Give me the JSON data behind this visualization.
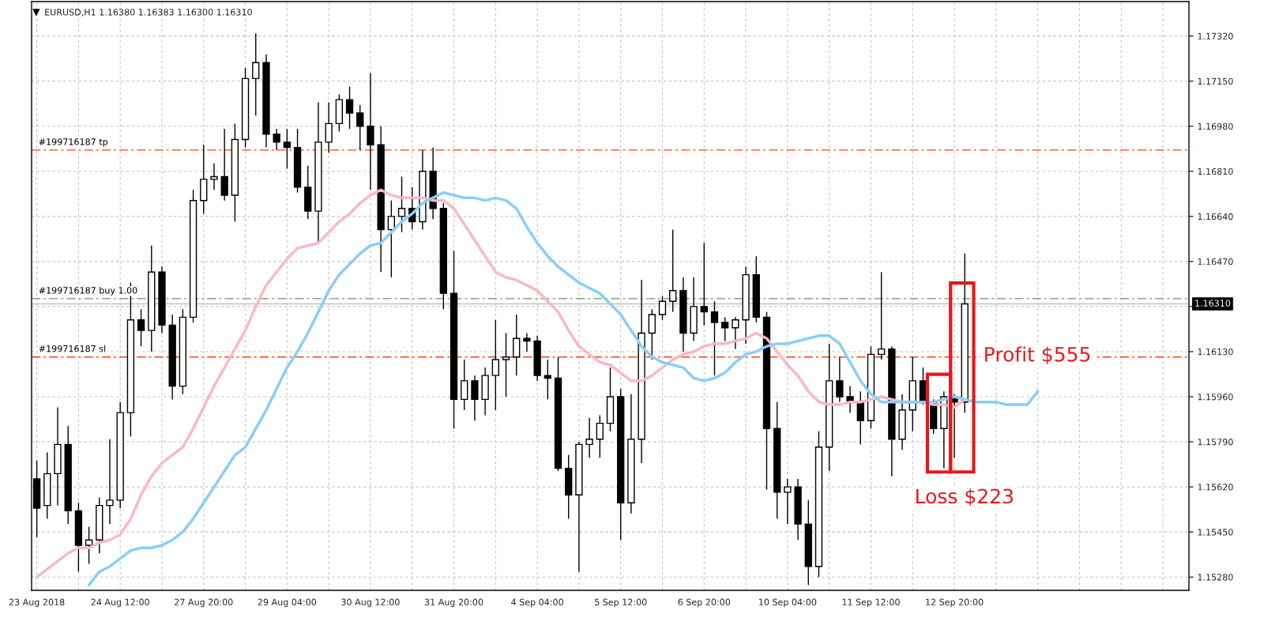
{
  "chart_data": {
    "type": "candlestick",
    "title": "EURUSD,H1 1.16380 1.16383 1.16300 1.16310",
    "categories": [
      "23 Aug 2018",
      null,
      null,
      null,
      null,
      null,
      null,
      null,
      "24 Aug 12:00",
      null,
      null,
      null,
      null,
      null,
      null,
      null,
      "27 Aug 20:00",
      null,
      null,
      null,
      null,
      null,
      null,
      null,
      "29 Aug 04:00",
      null,
      null,
      null,
      null,
      null,
      null,
      null,
      "30 Aug 12:00",
      null,
      null,
      null,
      null,
      null,
      null,
      null,
      "31 Aug 20:00",
      null,
      null,
      null,
      null,
      null,
      null,
      null,
      "4 Sep 04:00",
      null,
      null,
      null,
      null,
      null,
      null,
      null,
      "5 Sep 12:00",
      null,
      null,
      null,
      null,
      null,
      null,
      null,
      "6 Sep 20:00",
      null,
      null,
      null,
      null,
      null,
      null,
      null,
      "10 Sep 04:00",
      null,
      null,
      null,
      null,
      null,
      null,
      null,
      "11 Sep 12:00",
      null,
      null,
      null,
      null,
      null,
      null,
      null,
      "12 Sep 20:00",
      null,
      null,
      null,
      null,
      null,
      null,
      null,
      null,
      null,
      null,
      null,
      null,
      null,
      null,
      null,
      null,
      null,
      null,
      null,
      null,
      null,
      null
    ],
    "ohlc": [
      [
        1.1565,
        1.1572,
        1.1543,
        1.1554
      ],
      [
        1.1555,
        1.1575,
        1.155,
        1.1567
      ],
      [
        1.1567,
        1.1592,
        1.1555,
        1.1578
      ],
      [
        1.1578,
        1.1585,
        1.1548,
        1.1553
      ],
      [
        1.1553,
        1.1556,
        1.153,
        1.154
      ],
      [
        1.154,
        1.1547,
        1.1533,
        1.1542
      ],
      [
        1.1542,
        1.1558,
        1.1537,
        1.1555
      ],
      [
        1.1555,
        1.158,
        1.1548,
        1.1557
      ],
      [
        1.1557,
        1.1594,
        1.1554,
        1.159
      ],
      [
        1.159,
        1.1639,
        1.1581,
        1.1625
      ],
      [
        1.1625,
        1.1629,
        1.1615,
        1.1621
      ],
      [
        1.1621,
        1.1653,
        1.1613,
        1.1643
      ],
      [
        1.1643,
        1.1645,
        1.162,
        1.1623
      ],
      [
        1.1623,
        1.1627,
        1.1595,
        1.16
      ],
      [
        1.16,
        1.1629,
        1.1597,
        1.1626
      ],
      [
        1.1626,
        1.1674,
        1.1624,
        1.167
      ],
      [
        1.167,
        1.1691,
        1.1665,
        1.1678
      ],
      [
        1.1678,
        1.1684,
        1.1674,
        1.1679
      ],
      [
        1.1679,
        1.1697,
        1.167,
        1.1672
      ],
      [
        1.1672,
        1.1699,
        1.1662,
        1.1693
      ],
      [
        1.1693,
        1.172,
        1.169,
        1.1716
      ],
      [
        1.1716,
        1.1733,
        1.1702,
        1.1722
      ],
      [
        1.1722,
        1.1725,
        1.169,
        1.1695
      ],
      [
        1.1695,
        1.1697,
        1.1689,
        1.1692
      ],
      [
        1.1692,
        1.1697,
        1.1682,
        1.169
      ],
      [
        1.169,
        1.1697,
        1.1673,
        1.1675
      ],
      [
        1.1675,
        1.1683,
        1.1663,
        1.1666
      ],
      [
        1.1666,
        1.1707,
        1.1654,
        1.1692
      ],
      [
        1.1692,
        1.1707,
        1.1688,
        1.1699
      ],
      [
        1.1699,
        1.171,
        1.1696,
        1.1708
      ],
      [
        1.1708,
        1.1713,
        1.1697,
        1.1703
      ],
      [
        1.1703,
        1.1706,
        1.1689,
        1.1698
      ],
      [
        1.1698,
        1.1718,
        1.1674,
        1.1691
      ],
      [
        1.1691,
        1.1698,
        1.1643,
        1.1659
      ],
      [
        1.1659,
        1.167,
        1.1641,
        1.1664
      ],
      [
        1.1664,
        1.1679,
        1.1658,
        1.1667
      ],
      [
        1.1667,
        1.1675,
        1.1659,
        1.1662
      ],
      [
        1.1662,
        1.1689,
        1.1659,
        1.1681
      ],
      [
        1.1681,
        1.169,
        1.1663,
        1.1667
      ],
      [
        1.1667,
        1.1669,
        1.1629,
        1.1635
      ],
      [
        1.1635,
        1.1651,
        1.1584,
        1.1595
      ],
      [
        1.1595,
        1.161,
        1.1591,
        1.1602
      ],
      [
        1.1602,
        1.1604,
        1.1587,
        1.1595
      ],
      [
        1.1595,
        1.1607,
        1.1589,
        1.1604
      ],
      [
        1.1604,
        1.1625,
        1.1591,
        1.161
      ],
      [
        1.161,
        1.162,
        1.1596,
        1.1611
      ],
      [
        1.1611,
        1.1627,
        1.1604,
        1.1618
      ],
      [
        1.1618,
        1.162,
        1.1613,
        1.1617
      ],
      [
        1.1617,
        1.1619,
        1.1602,
        1.1604
      ],
      [
        1.1604,
        1.161,
        1.1595,
        1.1603
      ],
      [
        1.1603,
        1.1611,
        1.1568,
        1.1569
      ],
      [
        1.1569,
        1.1574,
        1.155,
        1.1559
      ],
      [
        1.1559,
        1.1579,
        1.153,
        1.1578
      ],
      [
        1.1578,
        1.1588,
        1.1573,
        1.158
      ],
      [
        1.158,
        1.1589,
        1.1573,
        1.1586
      ],
      [
        1.1586,
        1.1607,
        1.1583,
        1.1596
      ],
      [
        1.1596,
        1.1599,
        1.1542,
        1.1556
      ],
      [
        1.1556,
        1.1597,
        1.1552,
        1.158
      ],
      [
        1.158,
        1.164,
        1.1571,
        1.162
      ],
      [
        1.162,
        1.1629,
        1.161,
        1.1627
      ],
      [
        1.1627,
        1.1634,
        1.1625,
        1.1632
      ],
      [
        1.1632,
        1.1659,
        1.1628,
        1.1636
      ],
      [
        1.1636,
        1.1641,
        1.1613,
        1.162
      ],
      [
        1.162,
        1.1641,
        1.1617,
        1.163
      ],
      [
        1.163,
        1.1654,
        1.1623,
        1.1628
      ],
      [
        1.1628,
        1.1632,
        1.1604,
        1.1624
      ],
      [
        1.1624,
        1.1626,
        1.1617,
        1.1622
      ],
      [
        1.1622,
        1.1626,
        1.1614,
        1.1625
      ],
      [
        1.1625,
        1.1645,
        1.1616,
        1.1642
      ],
      [
        1.1642,
        1.1649,
        1.1624,
        1.1626
      ],
      [
        1.1626,
        1.1628,
        1.1561,
        1.1584
      ],
      [
        1.1584,
        1.1594,
        1.155,
        1.156
      ],
      [
        1.156,
        1.1565,
        1.1548,
        1.1562
      ],
      [
        1.1562,
        1.1565,
        1.1542,
        1.1548
      ],
      [
        1.1548,
        1.1557,
        1.1525,
        1.1532
      ],
      [
        1.1532,
        1.1583,
        1.1528,
        1.1577
      ],
      [
        1.1577,
        1.1616,
        1.1568,
        1.1602
      ],
      [
        1.1602,
        1.1611,
        1.1594,
        1.1596
      ],
      [
        1.1596,
        1.16,
        1.159,
        1.1594
      ],
      [
        1.1594,
        1.1598,
        1.1578,
        1.1587
      ],
      [
        1.1587,
        1.1615,
        1.1584,
        1.1612
      ],
      [
        1.1612,
        1.1643,
        1.161,
        1.1614
      ],
      [
        1.1614,
        1.1615,
        1.1566,
        1.158
      ],
      [
        1.158,
        1.1597,
        1.1576,
        1.1591
      ],
      [
        1.1591,
        1.1611,
        1.1583,
        1.1602
      ],
      [
        1.1602,
        1.1607,
        1.1593,
        1.1594
      ],
      [
        1.1594,
        1.1595,
        1.1582,
        1.1584
      ],
      [
        1.1584,
        1.1598,
        1.1569,
        1.1596
      ],
      [
        1.1596,
        1.1597,
        1.1573,
        1.1594
      ],
      [
        1.1594,
        1.165,
        1.159,
        1.1631
      ],
      null,
      null,
      null,
      null,
      null,
      null,
      null,
      null,
      null,
      null,
      null,
      null,
      null,
      null,
      null,
      null,
      null,
      null,
      null,
      null,
      null
    ],
    "series": [
      {
        "type": "line",
        "color": "#ffb6c1",
        "values": [
          1.1528,
          1.1531,
          1.1534,
          1.1537,
          1.1539,
          1.1539,
          1.1541,
          1.1542,
          1.1544,
          1.155,
          1.1559,
          1.1566,
          1.1571,
          1.1574,
          1.1577,
          1.1584,
          1.1592,
          1.16,
          1.1607,
          1.1614,
          1.1621,
          1.163,
          1.1638,
          1.1643,
          1.1648,
          1.1652,
          1.1653,
          1.1654,
          1.1658,
          1.1662,
          1.1665,
          1.1669,
          1.1672,
          1.1674,
          1.1672,
          1.1671,
          1.1671,
          1.1671,
          1.167,
          1.167,
          1.1667,
          1.1661,
          1.1655,
          1.1649,
          1.1643,
          1.1641,
          1.164,
          1.1638,
          1.1636,
          1.1632,
          1.1628,
          1.1621,
          1.1615,
          1.1612,
          1.1609,
          1.1608,
          1.1605,
          1.1602,
          1.1602,
          1.1604,
          1.1607,
          1.161,
          1.1612,
          1.1613,
          1.1615,
          1.1616,
          1.1616,
          1.1617,
          1.1618,
          1.162,
          1.1618,
          1.1613,
          1.1608,
          1.1604,
          1.1598,
          1.1594,
          1.1593,
          1.1593,
          1.1594,
          1.1594,
          1.1595,
          1.1596,
          1.1595,
          1.1594,
          1.1594,
          1.1594,
          1.1593,
          1.1593,
          1.1592,
          1.1595,
          null,
          null,
          null,
          null,
          null,
          null,
          null,
          null,
          null,
          null,
          null,
          null,
          null,
          null,
          null,
          null,
          null,
          null,
          null,
          null,
          null
        ]
      },
      {
        "type": "line",
        "color": "#87cefa",
        "values": [
          null,
          null,
          null,
          null,
          null,
          1.1525,
          1.153,
          1.1532,
          1.1535,
          1.1538,
          1.1539,
          1.1539,
          1.154,
          1.1542,
          1.1545,
          1.155,
          1.1556,
          1.1562,
          1.1568,
          1.1574,
          1.1577,
          1.1584,
          1.1591,
          1.1599,
          1.1607,
          1.1613,
          1.162,
          1.1628,
          1.1636,
          1.1642,
          1.1646,
          1.165,
          1.1653,
          1.1654,
          1.1658,
          1.1662,
          1.1665,
          1.1669,
          1.1671,
          1.1673,
          1.1672,
          1.1671,
          1.1671,
          1.167,
          1.1671,
          1.167,
          1.1667,
          1.166,
          1.1654,
          1.1649,
          1.1645,
          1.1642,
          1.1639,
          1.1637,
          1.1635,
          1.1631,
          1.1627,
          1.1621,
          1.1615,
          1.1611,
          1.1609,
          1.1608,
          1.1607,
          1.1603,
          1.1602,
          1.1603,
          1.1605,
          1.1609,
          1.1612,
          1.1613,
          1.1615,
          1.1616,
          1.1616,
          1.1617,
          1.1618,
          1.1619,
          1.1619,
          1.1616,
          1.1609,
          1.1602,
          1.1597,
          1.1594,
          1.1594,
          1.1594,
          1.1594,
          1.1594,
          1.1594,
          1.1595,
          1.1596,
          1.1595,
          1.1594,
          1.1594,
          1.1594,
          1.1593,
          1.1593,
          1.1593,
          1.1598,
          null,
          null,
          null,
          null,
          null,
          null,
          null,
          null,
          null,
          null,
          null,
          null,
          null,
          null
        ]
      }
    ],
    "ylim": [
      1.1523,
      1.1745
    ],
    "yticks": [
      {
        "value": 1.1528,
        "label": "1.15280"
      },
      {
        "value": 1.1545,
        "label": "1.15450"
      },
      {
        "value": 1.1562,
        "label": "1.15620"
      },
      {
        "value": 1.1579,
        "label": "1.15790"
      },
      {
        "value": 1.1596,
        "label": "1.15960"
      },
      {
        "value": 1.1613,
        "label": "1.16130"
      },
      {
        "value": 1.163,
        "label": null
      },
      {
        "value": 1.1647,
        "label": "1.16470"
      },
      {
        "value": 1.1664,
        "label": "1.16640"
      },
      {
        "value": 1.1681,
        "label": "1.16810"
      },
      {
        "value": 1.1698,
        "label": "1.16980"
      },
      {
        "value": 1.1715,
        "label": "1.17150"
      },
      {
        "value": 1.1732,
        "label": "1.17320"
      }
    ],
    "ref_lines": [
      {
        "axis": "y",
        "value": 1.1689,
        "label": "#199716187 tp",
        "color": "#ff4500",
        "line_style": "dashdot"
      },
      {
        "axis": "y",
        "value": 1.1633,
        "label": "#199716187 buy 1.00",
        "color": "#5ca05c",
        "line_style": "dashdot"
      },
      {
        "axis": "y",
        "value": 1.1631,
        "label": "1.16310",
        "color": "#c0c0c0",
        "line_style": "solid"
      },
      {
        "axis": "y",
        "value": 1.1611,
        "label": "#199716187 sl",
        "color": "#ff4500",
        "line_style": "dashdot"
      }
    ],
    "annotations": [
      "Profit $555",
      "Loss $223"
    ],
    "grid": true
  }
}
